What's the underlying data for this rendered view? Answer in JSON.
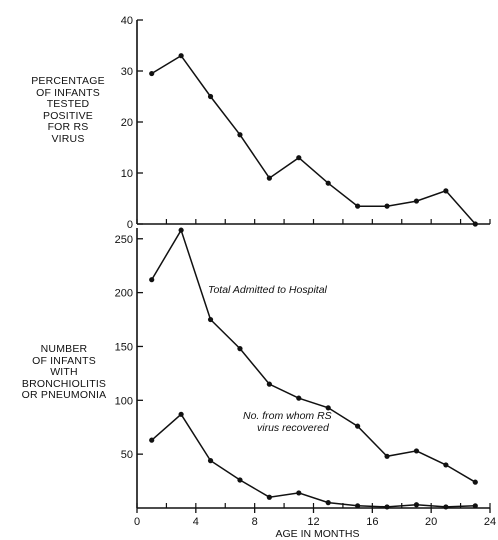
{
  "chart_data": [
    {
      "type": "line",
      "ylabel_lines": [
        "PERCENTAGE",
        "OF INFANTS",
        "TESTED",
        "POSITIVE",
        "FOR RS",
        "VIRUS"
      ],
      "xlim": [
        0,
        24
      ],
      "ylim": [
        0,
        40
      ],
      "yticks": [
        0,
        10,
        20,
        30,
        40
      ],
      "grid": false,
      "series": [
        {
          "x": [
            1,
            3,
            5,
            7,
            9,
            11,
            13,
            15,
            17,
            19,
            21,
            23
          ],
          "y": [
            29.5,
            33,
            25,
            17.5,
            9,
            13,
            8,
            3.5,
            3.5,
            4.5,
            6.5,
            0
          ]
        }
      ]
    },
    {
      "type": "line",
      "ylabel_lines": [
        "NUMBER",
        "OF INFANTS",
        "WITH",
        "BRONCHIOLITIS",
        "OR PNEUMONIA"
      ],
      "xlabel": "AGE IN MONTHS",
      "xlim": [
        0,
        24
      ],
      "ylim": [
        0,
        260
      ],
      "xticks": [
        0,
        4,
        8,
        12,
        16,
        20,
        24
      ],
      "yticks": [
        50,
        100,
        150,
        200,
        250
      ],
      "grid": false,
      "series": [
        {
          "annotation": "Total Admitted to Hospital",
          "x": [
            1,
            3,
            5,
            7,
            9,
            11,
            13,
            15,
            17,
            19,
            21,
            23
          ],
          "y": [
            212,
            258,
            175,
            148,
            115,
            102,
            93,
            76,
            48,
            53,
            40,
            24
          ]
        },
        {
          "annotation_lines": [
            "No. from whom RS",
            "virus recovered"
          ],
          "x": [
            1,
            3,
            5,
            7,
            9,
            11,
            13,
            15,
            17,
            19,
            21,
            23
          ],
          "y": [
            63,
            87,
            44,
            26,
            10,
            14,
            5,
            2,
            1,
            3,
            1,
            2
          ]
        }
      ]
    }
  ]
}
